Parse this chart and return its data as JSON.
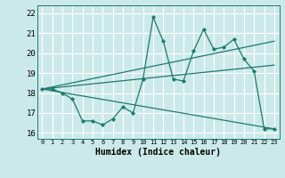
{
  "xlabel": "Humidex (Indice chaleur)",
  "background_color": "#cce9e9",
  "grid_color": "#ffffff",
  "line_color": "#1a7a6e",
  "xlim": [
    -0.5,
    23.5
  ],
  "ylim": [
    15.7,
    22.4
  ],
  "x_ticks": [
    0,
    1,
    2,
    3,
    4,
    5,
    6,
    7,
    8,
    9,
    10,
    11,
    12,
    13,
    14,
    15,
    16,
    17,
    18,
    19,
    20,
    21,
    22,
    23
  ],
  "y_ticks": [
    16,
    17,
    18,
    19,
    20,
    21,
    22
  ],
  "line1_x": [
    0,
    1,
    2,
    3,
    4,
    5,
    6,
    7,
    8,
    9,
    10,
    11,
    12,
    13,
    14,
    15,
    16,
    17,
    18,
    19,
    20,
    21,
    22,
    23
  ],
  "line1_y": [
    18.2,
    18.2,
    18.0,
    17.7,
    16.6,
    16.6,
    16.4,
    16.7,
    17.3,
    17.0,
    18.7,
    21.8,
    20.6,
    18.7,
    18.6,
    20.1,
    21.2,
    20.2,
    20.3,
    20.7,
    19.7,
    19.1,
    16.2,
    16.2
  ],
  "line2_x": [
    0,
    23
  ],
  "line2_y": [
    18.2,
    20.6
  ],
  "line3_x": [
    0,
    23
  ],
  "line3_y": [
    18.2,
    16.2
  ],
  "line4_x": [
    0,
    23
  ],
  "line4_y": [
    18.2,
    19.4
  ]
}
